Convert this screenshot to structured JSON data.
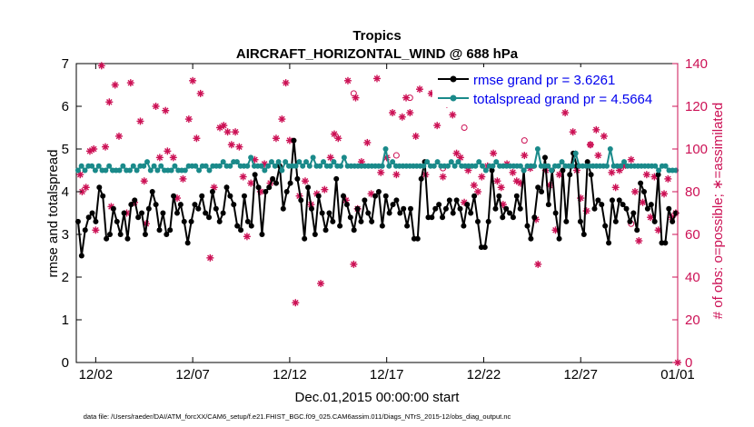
{
  "chart_data": {
    "type": "line",
    "title": "Tropics",
    "subtitle": "AIRCRAFT_HORIZONTAL_WIND @ 688 hPa",
    "xlabel": "Dec.01,2015 00:00:00 start",
    "ylabel": "rmse and totalspread",
    "ylabel_right": "# of obs: o=possible; ∗=assimilated",
    "footnote": "data file: /Users/raeder/DAI/ATM_forcXX/CAM6_setup/f.e21.FHIST_BGC.f09_025.CAM6assim.011/Diags_NTrS_2015-12/obs_diag_output.nc",
    "xlim": [
      0,
      31
    ],
    "ylim": [
      0,
      7
    ],
    "ylim_right": [
      0,
      140
    ],
    "xticks": [
      1,
      6,
      11,
      16,
      21,
      26,
      31
    ],
    "xtick_labels": [
      "12/02",
      "12/07",
      "12/12",
      "12/17",
      "12/22",
      "12/27",
      "01/01"
    ],
    "yticks": [
      0,
      1,
      2,
      3,
      4,
      5,
      6,
      7
    ],
    "yticks_right": [
      0,
      20,
      40,
      60,
      80,
      100,
      120,
      140
    ],
    "legend_position": "top-right",
    "colors": {
      "rmse": "#000000",
      "spread": "#1a8a8a",
      "obs": "#cc1155",
      "right_axis": "#cc1155",
      "legend_text": "#0000ee"
    },
    "series": [
      {
        "name": "rmse grand pr = 3.6261",
        "values": [
          3.3,
          2.5,
          3.1,
          3.4,
          3.5,
          3.3,
          4.1,
          3.9,
          2.9,
          3.0,
          3.6,
          3.3,
          3.0,
          3.5,
          2.9,
          3.7,
          3.8,
          3.4,
          3.5,
          3.0,
          3.6,
          4.0,
          3.7,
          3.1,
          3.5,
          3.0,
          3.1,
          3.9,
          3.5,
          3.7,
          3.3,
          2.8,
          3.3,
          3.7,
          3.6,
          3.9,
          3.5,
          3.4,
          4.0,
          3.6,
          3.3,
          3.5,
          4.1,
          3.9,
          3.7,
          3.2,
          3.1,
          3.9,
          3.3,
          3.2,
          4.4,
          4.1,
          3.0,
          4.0,
          4.1,
          4.3,
          4.2,
          4.6,
          3.6,
          4.0,
          4.2,
          5.2,
          4.3,
          3.8,
          2.9,
          4.1,
          3.6,
          3.0,
          3.9,
          3.5,
          3.1,
          3.5,
          3.3,
          4.3,
          3.2,
          3.9,
          3.7,
          3.4,
          3.1,
          3.6,
          3.3,
          3.8,
          3.5,
          3.3,
          3.9,
          4.0,
          3.2,
          3.9,
          3.5,
          3.7,
          3.8,
          3.5,
          3.6,
          3.2,
          3.6,
          2.9,
          2.9,
          4.3,
          4.7,
          3.4,
          3.4,
          3.6,
          3.7,
          3.4,
          3.6,
          3.8,
          3.5,
          3.8,
          3.6,
          3.2,
          3.7,
          3.5,
          3.9,
          3.3,
          2.7,
          2.7,
          3.3,
          4.5,
          3.6,
          3.9,
          3.4,
          3.6,
          3.5,
          3.4,
          3.9,
          3.6,
          4.5,
          3.2,
          2.9,
          3.4,
          4.1,
          4.0,
          4.8,
          3.7,
          4.5,
          3.5,
          2.9,
          4.5,
          3.3,
          4.4,
          4.9,
          4.6,
          3.3,
          3.0,
          4.7,
          4.4,
          3.6,
          3.8,
          3.7,
          3.2,
          2.8,
          3.8,
          3.3,
          3.8,
          3.7,
          3.6,
          3.3,
          3.5,
          3.1,
          4.2,
          4.0,
          3.6,
          3.7,
          3.3,
          4.4,
          2.8,
          2.8,
          3.6,
          3.3,
          3.5
        ],
        "labels_shown": "rmse grand pr = 3.6261"
      },
      {
        "name": "totalspread grand pr = 4.5664",
        "values": [
          4.5,
          4.6,
          4.5,
          4.6,
          4.6,
          4.5,
          4.6,
          4.5,
          4.5,
          4.6,
          4.5,
          4.5,
          4.5,
          4.6,
          4.5,
          4.5,
          4.6,
          4.5,
          4.6,
          4.6,
          4.7,
          4.5,
          4.6,
          4.5,
          4.6,
          4.5,
          4.5,
          4.5,
          4.6,
          4.5,
          4.5,
          4.5,
          4.6,
          4.6,
          4.6,
          4.5,
          4.6,
          4.6,
          4.5,
          4.6,
          4.6,
          4.6,
          4.7,
          4.6,
          4.6,
          4.7,
          4.7,
          4.6,
          4.6,
          4.6,
          4.8,
          4.6,
          4.6,
          4.6,
          4.5,
          4.6,
          4.7,
          4.6,
          4.7,
          4.5,
          4.7,
          4.6,
          4.6,
          4.6,
          4.7,
          4.6,
          4.7,
          4.6,
          4.8,
          4.6,
          4.6,
          4.7,
          4.6,
          4.6,
          4.7,
          4.6,
          4.6,
          4.8,
          4.6,
          4.6,
          4.6,
          4.6,
          4.6,
          4.6,
          4.6,
          4.6,
          4.6,
          4.6,
          4.6,
          5.0,
          4.6,
          4.7,
          4.6,
          4.6,
          4.6,
          4.6,
          4.6,
          4.6,
          4.6,
          4.6,
          4.6,
          4.7,
          4.6,
          4.6,
          4.7,
          4.6,
          4.6,
          4.6,
          4.7,
          4.6,
          4.7,
          4.6,
          4.6,
          4.6,
          4.6,
          4.6,
          4.7,
          4.6,
          4.5,
          4.6,
          4.6,
          4.7,
          4.6,
          4.6,
          4.6,
          4.6,
          4.6,
          4.6,
          4.6,
          4.5,
          4.6,
          4.6,
          4.6,
          5.0,
          4.6,
          4.6,
          4.6,
          4.5,
          4.6,
          4.6,
          4.7,
          4.6,
          4.6,
          4.6,
          4.9,
          4.6,
          4.6,
          4.6,
          4.6,
          4.6,
          4.6,
          4.6,
          4.6,
          4.6,
          5.0,
          4.6,
          4.6,
          4.6,
          4.7,
          4.6,
          4.6,
          4.6,
          4.6,
          4.6,
          4.6,
          4.6,
          4.6,
          4.6,
          4.5,
          4.6,
          4.6,
          4.5,
          4.5,
          4.5
        ],
        "labels_shown": "totalspread grand pr = 4.5664"
      }
    ],
    "obs_assimilated": [
      [
        0.2,
        88
      ],
      [
        0.3,
        80
      ],
      [
        0.5,
        82
      ],
      [
        0.7,
        99
      ],
      [
        0.9,
        100
      ],
      [
        1.0,
        62
      ],
      [
        1.3,
        139
      ],
      [
        1.5,
        101
      ],
      [
        1.7,
        122
      ],
      [
        1.8,
        73
      ],
      [
        2.0,
        130
      ],
      [
        2.2,
        106
      ],
      [
        2.6,
        70
      ],
      [
        2.8,
        131
      ],
      [
        3.0,
        75
      ],
      [
        3.3,
        113
      ],
      [
        3.5,
        85
      ],
      [
        3.6,
        65
      ],
      [
        4.1,
        120
      ],
      [
        4.3,
        96
      ],
      [
        4.6,
        118
      ],
      [
        4.7,
        99
      ],
      [
        5.0,
        96
      ],
      [
        5.2,
        77
      ],
      [
        5.5,
        86
      ],
      [
        5.8,
        114
      ],
      [
        6.0,
        132
      ],
      [
        6.2,
        105
      ],
      [
        6.4,
        126
      ],
      [
        6.9,
        49
      ],
      [
        7.1,
        82
      ],
      [
        7.4,
        110
      ],
      [
        7.6,
        111
      ],
      [
        7.8,
        108
      ],
      [
        8.0,
        102
      ],
      [
        8.2,
        108
      ],
      [
        8.4,
        101
      ],
      [
        8.6,
        87
      ],
      [
        8.8,
        59
      ],
      [
        9.0,
        84
      ],
      [
        9.2,
        95
      ],
      [
        9.5,
        80
      ],
      [
        9.7,
        93
      ],
      [
        10.0,
        84
      ],
      [
        10.3,
        105
      ],
      [
        10.6,
        114
      ],
      [
        10.8,
        131
      ],
      [
        11.0,
        104
      ],
      [
        11.3,
        28
      ],
      [
        11.5,
        78
      ],
      [
        11.8,
        85
      ],
      [
        12.1,
        74
      ],
      [
        12.4,
        79
      ],
      [
        12.6,
        37
      ],
      [
        12.8,
        81
      ],
      [
        13.1,
        96
      ],
      [
        13.3,
        107
      ],
      [
        13.5,
        105
      ],
      [
        13.9,
        76
      ],
      [
        14.0,
        132
      ],
      [
        14.3,
        46
      ],
      [
        14.4,
        124
      ],
      [
        14.5,
        72
      ],
      [
        14.7,
        94
      ],
      [
        15.0,
        103
      ],
      [
        15.2,
        79
      ],
      [
        15.5,
        133
      ],
      [
        15.7,
        89
      ],
      [
        16.0,
        96
      ],
      [
        16.3,
        117
      ],
      [
        16.5,
        88
      ],
      [
        16.8,
        115
      ],
      [
        17.0,
        124
      ],
      [
        17.2,
        117
      ],
      [
        17.5,
        106
      ],
      [
        17.7,
        128
      ],
      [
        18.0,
        88
      ],
      [
        18.3,
        126
      ],
      [
        18.6,
        111
      ],
      [
        18.9,
        87
      ],
      [
        19.1,
        121
      ],
      [
        19.4,
        116
      ],
      [
        19.6,
        98
      ],
      [
        19.8,
        96
      ],
      [
        20.0,
        75
      ],
      [
        20.2,
        90
      ],
      [
        20.5,
        83
      ],
      [
        20.7,
        80
      ],
      [
        20.9,
        87
      ],
      [
        21.2,
        92
      ],
      [
        21.5,
        98
      ],
      [
        21.7,
        85
      ],
      [
        21.9,
        82
      ],
      [
        22.0,
        74
      ],
      [
        22.2,
        93
      ],
      [
        22.5,
        89
      ],
      [
        22.7,
        85
      ],
      [
        22.9,
        84
      ],
      [
        23.1,
        97
      ],
      [
        23.4,
        91
      ],
      [
        23.7,
        67
      ],
      [
        23.8,
        46
      ],
      [
        24.2,
        90
      ],
      [
        24.4,
        83
      ],
      [
        24.7,
        62
      ],
      [
        24.9,
        88
      ],
      [
        25.2,
        117
      ],
      [
        25.4,
        124
      ],
      [
        25.6,
        108
      ],
      [
        25.8,
        90
      ],
      [
        26.0,
        77
      ],
      [
        26.3,
        71
      ],
      [
        26.5,
        102
      ],
      [
        26.8,
        109
      ],
      [
        26.9,
        97
      ],
      [
        27.2,
        106
      ],
      [
        27.6,
        89
      ],
      [
        27.8,
        82
      ],
      [
        28.0,
        90
      ],
      [
        28.2,
        92
      ],
      [
        28.6,
        95
      ],
      [
        28.8,
        80
      ],
      [
        29.0,
        57
      ],
      [
        29.2,
        75
      ],
      [
        29.4,
        88
      ],
      [
        29.6,
        68
      ],
      [
        29.8,
        87
      ],
      [
        30.0,
        62
      ],
      [
        30.3,
        79
      ],
      [
        30.5,
        86
      ],
      [
        30.7,
        68
      ],
      [
        30.9,
        70
      ],
      [
        31.0,
        0
      ]
    ],
    "obs_possible": [
      [
        14.3,
        126
      ],
      [
        16.5,
        97
      ],
      [
        17.2,
        124
      ],
      [
        20.0,
        110
      ],
      [
        28.6,
        65
      ],
      [
        23.1,
        104
      ],
      [
        26.5,
        102
      ],
      [
        18.9,
        91
      ]
    ]
  }
}
